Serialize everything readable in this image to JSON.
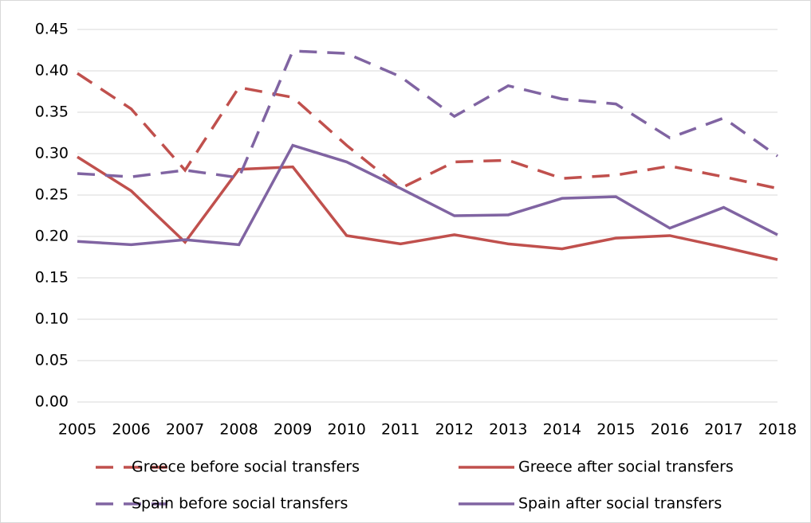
{
  "chart_data": {
    "type": "line",
    "categories": [
      "2005",
      "2006",
      "2007",
      "2008",
      "2009",
      "2010",
      "2011",
      "2012",
      "2013",
      "2014",
      "2015",
      "2016",
      "2017",
      "2018"
    ],
    "series": [
      {
        "name": "Greece before social transfers",
        "color": "#c0504d",
        "dashed": true,
        "values": [
          0.397,
          0.354,
          0.28,
          0.38,
          0.368,
          0.31,
          0.258,
          0.29,
          0.292,
          0.27,
          0.274,
          0.285,
          0.272,
          0.258
        ]
      },
      {
        "name": "Greece after social transfers",
        "color": "#c0504d",
        "dashed": false,
        "values": [
          0.296,
          0.255,
          0.193,
          0.281,
          0.284,
          0.201,
          0.191,
          0.202,
          0.191,
          0.185,
          0.198,
          0.201,
          0.187,
          0.172
        ]
      },
      {
        "name": "Spain before social transfers",
        "color": "#8064a2",
        "dashed": true,
        "values": [
          0.276,
          0.272,
          0.28,
          0.271,
          0.424,
          0.421,
          0.393,
          0.345,
          0.382,
          0.366,
          0.36,
          0.319,
          0.343,
          0.297
        ]
      },
      {
        "name": "Spain after social transfers",
        "color": "#8064a2",
        "dashed": false,
        "values": [
          0.194,
          0.19,
          0.196,
          0.19,
          0.31,
          0.29,
          0.258,
          0.225,
          0.226,
          0.246,
          0.248,
          0.21,
          0.235,
          0.202
        ]
      }
    ],
    "ylim": [
      0,
      0.45
    ],
    "yticks": [
      {
        "value": 0,
        "label": "0.00"
      },
      {
        "value": 0.05,
        "label": "0.05"
      },
      {
        "value": 0.1,
        "label": "0.10"
      },
      {
        "value": 0.15,
        "label": "0.15"
      },
      {
        "value": 0.2,
        "label": "0.20"
      },
      {
        "value": 0.25,
        "label": "0.25"
      },
      {
        "value": 0.3,
        "label": "0.30"
      },
      {
        "value": 0.35,
        "label": "0.35"
      },
      {
        "value": 0.4,
        "label": "0.40"
      },
      {
        "value": 0.45,
        "label": "0.45"
      }
    ],
    "grid": true
  }
}
